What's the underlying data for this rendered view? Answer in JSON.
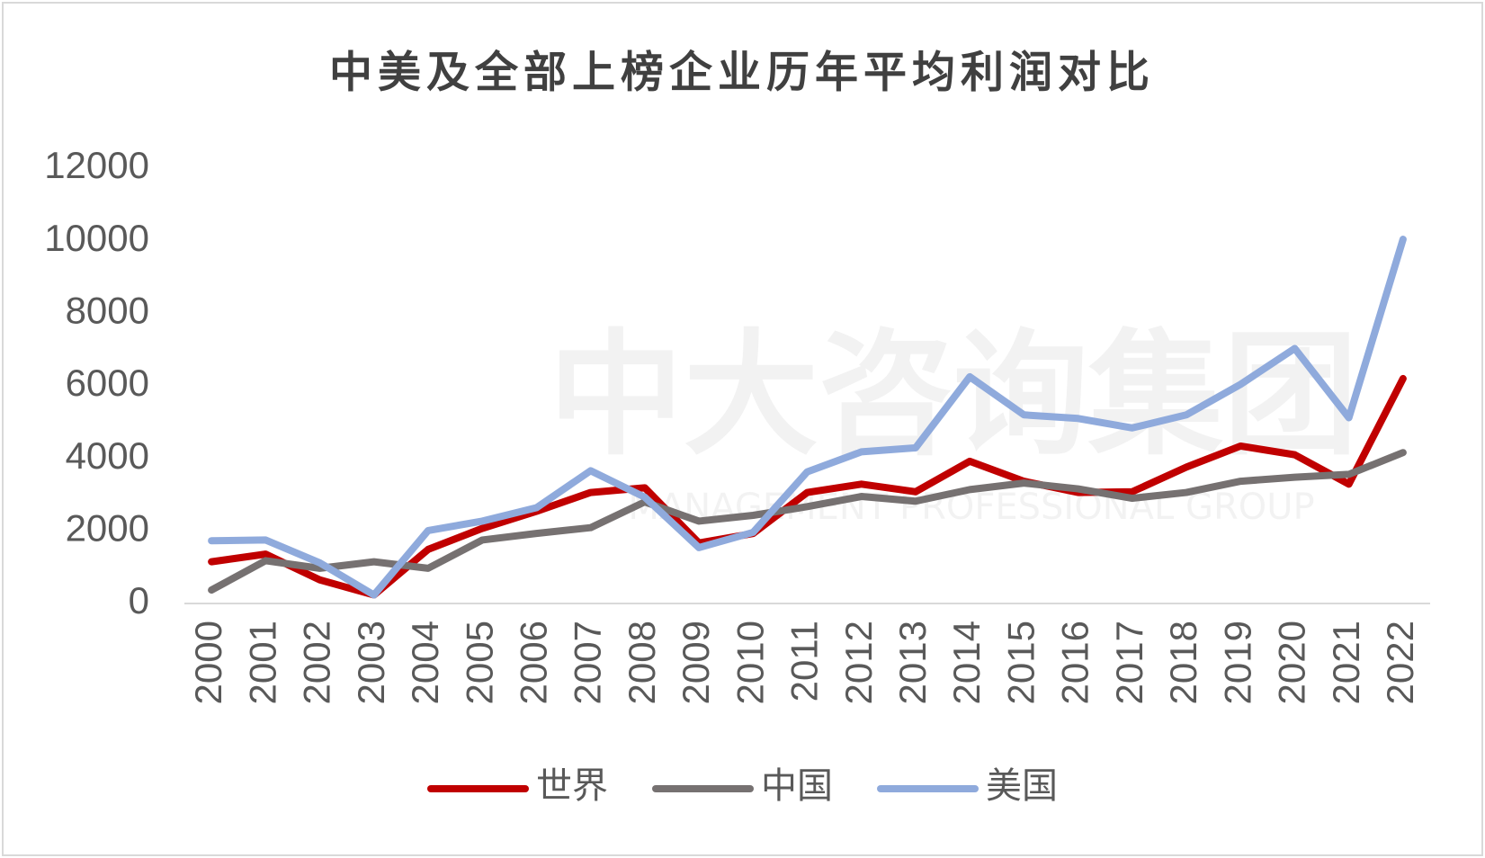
{
  "chart_data": {
    "type": "line",
    "title": "中美及全部上榜企业历年平均利润对比",
    "watermark": "中大咨询集团",
    "watermark_sub": "MANAGEMENT PROFESSIONAL GROUP",
    "categories": [
      "2000",
      "2001",
      "2002",
      "2003",
      "2004",
      "2005",
      "2006",
      "2007",
      "2008",
      "2009",
      "2010",
      "2011",
      "2012",
      "2013",
      "2014",
      "2015",
      "2016",
      "2017",
      "2018",
      "2019",
      "2020",
      "2021",
      "2022"
    ],
    "series": [
      {
        "name": "世界",
        "color": "#c00000",
        "values": [
          1150,
          1360,
          650,
          235,
          1490,
          2070,
          2540,
          3060,
          3190,
          1670,
          1930,
          3060,
          3290,
          3080,
          3920,
          3370,
          3060,
          3080,
          3760,
          4340,
          4100,
          3290,
          6200
        ]
      },
      {
        "name": "中国",
        "color": "#767171",
        "values": [
          370,
          1180,
          970,
          1150,
          970,
          1750,
          1930,
          2090,
          2800,
          2270,
          2430,
          2670,
          2950,
          2820,
          3140,
          3320,
          3160,
          2900,
          3060,
          3370,
          3480,
          3560,
          4160
        ]
      },
      {
        "name": "美国",
        "color": "#8faadc",
        "values": [
          1730,
          1750,
          1120,
          235,
          2010,
          2270,
          2640,
          3660,
          2930,
          1540,
          1960,
          3630,
          4180,
          4290,
          6250,
          5200,
          5100,
          4840,
          5200,
          6040,
          7030,
          5120,
          10040
        ]
      }
    ],
    "ylim": [
      0,
      12000
    ],
    "yticks": [
      0,
      2000,
      4000,
      6000,
      8000,
      10000,
      12000
    ],
    "grid": false,
    "legend": "bottom"
  }
}
